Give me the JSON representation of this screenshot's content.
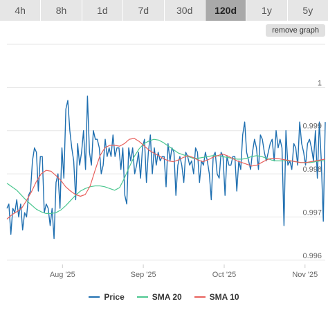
{
  "tabs": [
    {
      "label": "4h",
      "active": false
    },
    {
      "label": "8h",
      "active": false
    },
    {
      "label": "1d",
      "active": false
    },
    {
      "label": "7d",
      "active": false
    },
    {
      "label": "30d",
      "active": false
    },
    {
      "label": "120d",
      "active": true
    },
    {
      "label": "1y",
      "active": false
    },
    {
      "label": "5y",
      "active": false
    }
  ],
  "remove_graph_label": "remove graph",
  "colors": {
    "price": "#1f6fb0",
    "sma20": "#4cc790",
    "sma10": "#e8605c",
    "grid": "#e6e6e6",
    "axis_text": "#666666"
  },
  "chart_data": {
    "type": "line",
    "title": "",
    "xlabel": "",
    "ylabel": "",
    "x_tick_labels": [
      "Aug '25",
      "Sep '25",
      "Oct '25",
      "Nov '25"
    ],
    "x_tick_days": [
      22,
      54,
      86,
      118
    ],
    "y_ticks": [
      {
        "value": 0.996,
        "label": "0.996"
      },
      {
        "value": 0.997,
        "label": "0.997"
      },
      {
        "value": 0.998,
        "label": "0.998"
      },
      {
        "value": 0.999,
        "label": "0.999"
      },
      {
        "value": 1.0,
        "label": "1"
      }
    ],
    "y_max_gridline": 1.001,
    "xlim": [
      0,
      126
    ],
    "ylim": [
      0.9959,
      1.001
    ],
    "grid": true,
    "legend_position": "bottom",
    "series": [
      {
        "name": "Price",
        "color_key": "price",
        "values": [
          0.9972,
          0.9973,
          0.9966,
          0.9972,
          0.9971,
          0.9974,
          0.997,
          0.9973,
          0.9967,
          0.9971,
          0.997,
          0.9975,
          0.9976,
          0.9983,
          0.9986,
          0.9985,
          0.9976,
          0.9984,
          0.9984,
          0.9971,
          0.9973,
          0.9972,
          0.9968,
          0.9972,
          0.9965,
          0.9978,
          0.998,
          0.9972,
          0.9986,
          0.9979,
          0.9995,
          0.9997,
          0.999,
          0.9986,
          0.9983,
          0.9974,
          0.9987,
          0.9982,
          0.9985,
          0.999,
          0.9981,
          0.9998,
          0.9985,
          0.9982,
          0.999,
          0.9988,
          0.9988,
          0.9986,
          0.998,
          0.9982,
          0.9988,
          0.9984,
          0.9986,
          0.9984,
          0.9989,
          0.9984,
          0.9986,
          0.9986,
          0.9981,
          0.9986,
          0.9975,
          0.9973,
          0.9986,
          0.9983,
          0.9986,
          0.998,
          0.9982,
          0.9985,
          0.9979,
          0.9986,
          0.9988,
          0.9978,
          0.9985,
          0.9989,
          0.998,
          0.9986,
          0.9982,
          0.9985,
          0.9983,
          0.9984,
          0.9984,
          0.9977,
          0.9987,
          0.9983,
          0.9986,
          0.9985,
          0.9975,
          0.9982,
          0.9984,
          0.9982,
          0.9978,
          0.9985,
          0.9984,
          0.9982,
          0.9983,
          0.998,
          0.9986,
          0.9985,
          0.9978,
          0.9983,
          0.9982,
          0.9985,
          0.9983,
          0.998,
          0.9974,
          0.9984,
          0.9985,
          0.998,
          0.9979,
          0.9985,
          0.9984,
          0.9975,
          0.9984,
          0.9982,
          0.9982,
          0.9984,
          0.9984,
          0.9976,
          0.9983,
          0.9981,
          0.9989,
          0.9992,
          0.9985,
          0.9983,
          0.9981,
          0.9985,
          0.9988,
          0.9986,
          0.9981,
          0.9989,
          0.9988,
          0.9985,
          0.9983,
          0.9985,
          0.9987,
          0.9988,
          0.9983,
          0.999,
          0.9986,
          0.9988,
          0.9986,
          0.9968,
          0.999,
          0.9982,
          0.9983,
          0.9981,
          0.9987,
          0.9986,
          0.9982,
          0.9992,
          0.9987,
          0.9985,
          0.9982,
          0.9987,
          0.9988,
          0.9986,
          0.9983,
          0.999,
          0.9979,
          0.9992,
          0.9983,
          0.9969,
          0.9992
        ]
      },
      {
        "name": "SMA 20",
        "color_key": "sma20",
        "values": [
          0.99778,
          0.9977,
          0.99762,
          0.9975,
          0.99738,
          0.99728,
          0.99718,
          0.99712,
          0.99708,
          0.99708,
          0.9971,
          0.99716,
          0.99726,
          0.99738,
          0.9975,
          0.9976,
          0.99766,
          0.9977,
          0.99772,
          0.99772,
          0.9977,
          0.99766,
          0.99762,
          0.99768,
          0.9979,
          0.99816,
          0.9984,
          0.99858,
          0.9987,
          0.99876,
          0.9988,
          0.99878,
          0.99872,
          0.99864,
          0.99856,
          0.99848,
          0.99844,
          0.9984,
          0.99836,
          0.99836,
          0.99838,
          0.9984,
          0.99842,
          0.99842,
          0.9984,
          0.99838,
          0.99836,
          0.99834,
          0.99834,
          0.99836,
          0.9984,
          0.99842,
          0.9984,
          0.99836,
          0.99832,
          0.9983,
          0.9983,
          0.9983,
          0.9983,
          0.99828,
          0.99826,
          0.99826,
          0.99826,
          0.99828,
          0.9983,
          0.9983
        ]
      },
      {
        "name": "SMA 10",
        "color_key": "sma10",
        "values": [
          0.99695,
          0.99705,
          0.99712,
          0.9972,
          0.99738,
          0.99758,
          0.99782,
          0.998,
          0.99808,
          0.99806,
          0.99796,
          0.99785,
          0.9977,
          0.9976,
          0.99752,
          0.99748,
          0.99752,
          0.99772,
          0.99808,
          0.99842,
          0.9986,
          0.99866,
          0.99866,
          0.99864,
          0.9987,
          0.9988,
          0.99882,
          0.99875,
          0.99865,
          0.99855,
          0.99848,
          0.99842,
          0.99835,
          0.9983,
          0.99828,
          0.99832,
          0.99838,
          0.99842,
          0.99838,
          0.99832,
          0.99828,
          0.99832,
          0.99838,
          0.99842,
          0.99846,
          0.99842,
          0.99836,
          0.9983,
          0.99826,
          0.99822,
          0.99818,
          0.9982,
          0.99826,
          0.99832,
          0.99836,
          0.99836,
          0.99834,
          0.99832,
          0.9983,
          0.99828,
          0.99826,
          0.99826,
          0.99828,
          0.9983,
          0.99832,
          0.99834
        ]
      }
    ]
  }
}
